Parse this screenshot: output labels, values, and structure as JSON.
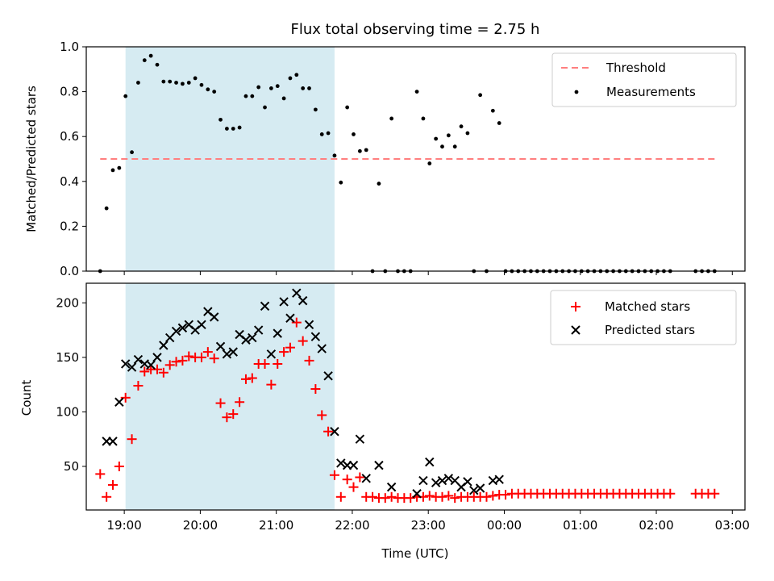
{
  "chart_data": [
    {
      "type": "scatter",
      "title": "Flux total observing time = 2.75 h",
      "ylabel": "Matched/Predicted stars",
      "xlabel": "",
      "ylim": [
        0,
        1.0
      ],
      "xlim": [
        "18:30",
        "03:10"
      ],
      "yticks": [
        "0.0",
        "0.2",
        "0.4",
        "0.6",
        "0.8",
        "1.0"
      ],
      "xticks": [
        "19:00",
        "20:00",
        "21:00",
        "22:00",
        "23:00",
        "00:00",
        "01:00",
        "02:00",
        "03:00"
      ],
      "tick_labels_visible_x": false,
      "shaded_interval": {
        "start": "19:01",
        "end": "21:46",
        "color": "#add8e6"
      },
      "legend_position": "top-right",
      "series": [
        {
          "name": "Threshold",
          "kind": "dashed-line",
          "color": "#ff7f7f",
          "x": [
            "18:41",
            "02:47"
          ],
          "y": [
            0.5,
            0.5
          ]
        },
        {
          "name": "Measurements",
          "kind": "scatter",
          "color": "#000000",
          "x": [
            "18:41",
            "18:46",
            "18:51",
            "18:56",
            "19:01",
            "19:06",
            "19:11",
            "19:16",
            "19:21",
            "19:26",
            "19:31",
            "19:36",
            "19:41",
            "19:46",
            "19:51",
            "19:56",
            "20:01",
            "20:06",
            "20:11",
            "20:16",
            "20:21",
            "20:26",
            "20:31",
            "20:36",
            "20:41",
            "20:46",
            "20:51",
            "20:56",
            "21:01",
            "21:06",
            "21:11",
            "21:16",
            "21:21",
            "21:26",
            "21:31",
            "21:36",
            "21:41",
            "21:46",
            "21:51",
            "21:56",
            "22:01",
            "22:06",
            "22:11",
            "22:16",
            "22:21",
            "22:26",
            "22:31",
            "22:36",
            "22:41",
            "22:46",
            "22:51",
            "22:56",
            "23:01",
            "23:06",
            "23:11",
            "23:16",
            "23:21",
            "23:26",
            "23:31",
            "23:36",
            "23:41",
            "23:46",
            "23:51",
            "23:56",
            "00:01",
            "00:06",
            "00:11",
            "00:16",
            "00:21",
            "00:26",
            "00:31",
            "00:36",
            "00:41",
            "00:46",
            "00:51",
            "00:56",
            "01:01",
            "01:06",
            "01:11",
            "01:16",
            "01:21",
            "01:26",
            "01:31",
            "01:36",
            "01:41",
            "01:46",
            "01:51",
            "01:56",
            "02:01",
            "02:06",
            "02:11",
            "02:31",
            "02:36",
            "02:41",
            "02:46"
          ],
          "y": [
            0.0,
            0.28,
            0.45,
            0.46,
            0.78,
            0.53,
            0.84,
            0.94,
            0.96,
            0.92,
            0.845,
            0.845,
            0.84,
            0.835,
            0.84,
            0.86,
            0.83,
            0.81,
            0.8,
            0.675,
            0.635,
            0.635,
            0.64,
            0.78,
            0.78,
            0.82,
            0.73,
            0.815,
            0.825,
            0.77,
            0.86,
            0.875,
            0.815,
            0.815,
            0.72,
            0.61,
            0.615,
            0.515,
            0.395,
            0.73,
            0.61,
            0.535,
            0.54,
            0.0,
            0.39,
            0.0,
            0.68,
            0.0,
            0.0,
            0.0,
            0.8,
            0.68,
            0.48,
            0.59,
            0.555,
            0.605,
            0.555,
            0.645,
            0.615,
            0.0,
            0.785,
            0.0,
            0.715,
            0.66,
            0.0,
            0.0,
            0.0,
            0.0,
            0.0,
            0.0,
            0.0,
            0.0,
            0.0,
            0.0,
            0.0,
            0.0,
            0.0,
            0.0,
            0.0,
            0.0,
            0.0,
            0.0,
            0.0,
            0.0,
            0.0,
            0.0,
            0.0,
            0.0,
            0.0,
            0.0,
            0.0,
            0.0,
            0.0,
            0.0,
            0.0
          ]
        }
      ]
    },
    {
      "type": "scatter",
      "title": "",
      "ylabel": "Count",
      "xlabel": "Time (UTC)",
      "ylim": [
        10,
        218
      ],
      "xlim": [
        "18:30",
        "03:10"
      ],
      "yticks": [
        "50",
        "100",
        "150",
        "200"
      ],
      "xticks": [
        "19:00",
        "20:00",
        "21:00",
        "22:00",
        "23:00",
        "00:00",
        "01:00",
        "02:00",
        "03:00"
      ],
      "shaded_interval": {
        "start": "19:01",
        "end": "21:46",
        "color": "#add8e6"
      },
      "legend_position": "top-right",
      "series": [
        {
          "name": "Matched stars",
          "marker": "+",
          "color": "#ff0000",
          "x": [
            "18:41",
            "18:46",
            "18:51",
            "18:56",
            "19:01",
            "19:06",
            "19:11",
            "19:16",
            "19:21",
            "19:26",
            "19:31",
            "19:36",
            "19:41",
            "19:46",
            "19:51",
            "19:56",
            "20:01",
            "20:06",
            "20:11",
            "20:16",
            "20:21",
            "20:26",
            "20:31",
            "20:36",
            "20:41",
            "20:46",
            "20:51",
            "20:56",
            "21:01",
            "21:06",
            "21:11",
            "21:16",
            "21:21",
            "21:26",
            "21:31",
            "21:36",
            "21:41",
            "21:46",
            "21:51",
            "21:56",
            "22:01",
            "22:06",
            "22:11",
            "22:16",
            "22:21",
            "22:26",
            "22:31",
            "22:36",
            "22:41",
            "22:46",
            "22:51",
            "22:56",
            "23:01",
            "23:06",
            "23:11",
            "23:16",
            "23:21",
            "23:26",
            "23:31",
            "23:36",
            "23:41",
            "23:46",
            "23:51",
            "23:56",
            "00:01",
            "00:06",
            "00:11",
            "00:16",
            "00:21",
            "00:26",
            "00:31",
            "00:36",
            "00:41",
            "00:46",
            "00:51",
            "00:56",
            "01:01",
            "01:06",
            "01:11",
            "01:16",
            "01:21",
            "01:26",
            "01:31",
            "01:36",
            "01:41",
            "01:46",
            "01:51",
            "01:56",
            "02:01",
            "02:06",
            "02:11",
            "02:31",
            "02:36",
            "02:41",
            "02:46"
          ],
          "y": [
            43,
            22,
            33,
            50,
            113,
            75,
            124,
            137,
            139,
            139,
            136,
            143,
            146,
            147,
            151,
            150,
            150,
            155,
            149,
            108,
            95,
            98,
            109,
            130,
            131,
            144,
            144,
            125,
            144,
            155,
            159,
            182,
            165,
            147,
            121,
            97,
            82,
            42,
            22,
            38,
            31,
            40,
            22,
            22,
            21,
            21,
            22,
            21,
            21,
            21,
            22,
            22,
            23,
            22,
            22,
            23,
            21,
            22,
            22,
            22,
            22,
            22,
            23,
            24,
            24,
            25,
            25,
            25,
            25,
            25,
            25,
            25,
            25,
            25,
            25,
            25,
            25,
            25,
            25,
            25,
            25,
            25,
            25,
            25,
            25,
            25,
            25,
            25,
            25,
            25,
            25,
            25,
            25,
            25,
            25
          ]
        },
        {
          "name": "Predicted stars",
          "marker": "x",
          "color": "#000000",
          "x": [
            "18:46",
            "18:51",
            "18:56",
            "19:01",
            "19:06",
            "19:11",
            "19:16",
            "19:21",
            "19:26",
            "19:31",
            "19:36",
            "19:41",
            "19:46",
            "19:51",
            "19:56",
            "20:01",
            "20:06",
            "20:11",
            "20:16",
            "20:21",
            "20:26",
            "20:31",
            "20:36",
            "20:41",
            "20:46",
            "20:51",
            "20:56",
            "21:01",
            "21:06",
            "21:11",
            "21:16",
            "21:21",
            "21:26",
            "21:31",
            "21:36",
            "21:41",
            "21:46",
            "21:51",
            "21:56",
            "22:01",
            "22:06",
            "22:11",
            "22:21",
            "22:31",
            "22:51",
            "22:56",
            "23:01",
            "23:06",
            "23:11",
            "23:16",
            "23:21",
            "23:26",
            "23:31",
            "23:36",
            "23:41",
            "23:51",
            "23:56"
          ],
          "y": [
            73,
            73,
            109,
            144,
            141,
            148,
            144,
            143,
            150,
            161,
            168,
            174,
            177,
            180,
            175,
            180,
            192,
            187,
            160,
            153,
            155,
            171,
            166,
            168,
            175,
            197,
            153,
            172,
            201,
            186,
            209,
            202,
            180,
            169,
            158,
            133,
            82,
            53,
            51,
            51,
            75,
            39,
            51,
            31,
            25,
            37,
            54,
            35,
            37,
            39,
            37,
            31,
            36,
            28,
            30,
            37,
            38
          ]
        }
      ]
    }
  ]
}
